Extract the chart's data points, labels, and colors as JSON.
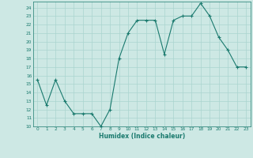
{
  "x": [
    0,
    1,
    2,
    3,
    4,
    5,
    6,
    7,
    8,
    9,
    10,
    11,
    12,
    13,
    14,
    15,
    16,
    17,
    18,
    19,
    20,
    21,
    22,
    23
  ],
  "y": [
    15.5,
    12.5,
    15.5,
    13.0,
    11.5,
    11.5,
    11.5,
    10.0,
    12.0,
    18.0,
    21.0,
    22.5,
    22.5,
    22.5,
    18.5,
    22.5,
    23.0,
    23.0,
    24.5,
    23.0,
    20.5,
    19.0,
    17.0,
    17.0
  ],
  "xlabel": "Humidex (Indice chaleur)",
  "xlim": [
    -0.5,
    23.5
  ],
  "ylim": [
    10,
    24.5
  ],
  "yticks": [
    10,
    11,
    12,
    13,
    14,
    15,
    16,
    17,
    18,
    19,
    20,
    21,
    22,
    23,
    24
  ],
  "xticks": [
    0,
    1,
    2,
    3,
    4,
    5,
    6,
    7,
    8,
    9,
    10,
    11,
    12,
    13,
    14,
    15,
    16,
    17,
    18,
    19,
    20,
    21,
    22,
    23
  ],
  "line_color": "#1a7a6e",
  "bg_color": "#cde8e4",
  "grid_color": "#aad4cf",
  "label_color": "#1a7a6e",
  "tick_color": "#1a7a6e"
}
